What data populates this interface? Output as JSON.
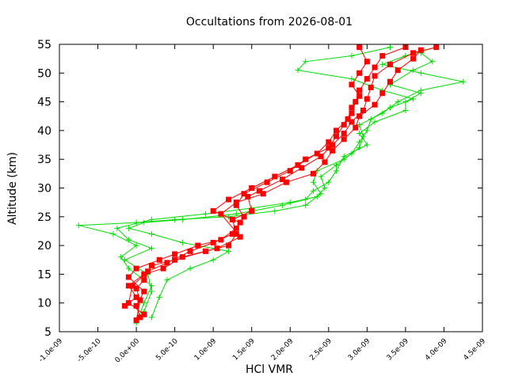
{
  "chart_data": {
    "type": "scatter",
    "title": "Occultations from 2026-08-01",
    "xlabel": "HCl VMR",
    "ylabel": "Altitude (km)",
    "xlim": [
      -1e-09,
      4.5e-09
    ],
    "ylim": [
      5,
      55
    ],
    "x_ticks": [
      -1e-09,
      -5e-10,
      0.0,
      5e-10,
      1e-09,
      1.5e-09,
      2e-09,
      2.5e-09,
      3e-09,
      3.5e-09,
      4e-09,
      4.5e-09
    ],
    "x_tick_labels": [
      "-1.0e-09",
      "-5.0e-10",
      "0.0e+00",
      "5.0e-10",
      "1.0e-09",
      "1.5e-09",
      "2.0e-09",
      "2.5e-09",
      "3.0e-09",
      "3.5e-09",
      "4.0e-09",
      "4.5e-09"
    ],
    "y_ticks": [
      5,
      10,
      15,
      20,
      25,
      30,
      35,
      40,
      45,
      50,
      55
    ],
    "y_tick_labels": [
      "5",
      "10",
      "15",
      "20",
      "25",
      "30",
      "35",
      "40",
      "45",
      "50",
      "55"
    ],
    "grid": false,
    "legend": "none",
    "series": [
      {
        "color": "#ff0000",
        "marker": "square",
        "line": true,
        "profiles": [
          [
            [
              5e-11,
              7.5
            ],
            [
              0.0,
              9.5
            ],
            [
              1e-10,
              12
            ],
            [
              -1e-10,
              14.5
            ],
            [
              0.0,
              16
            ],
            [
              3e-10,
              17.5
            ],
            [
              5e-10,
              18.5
            ],
            [
              8e-10,
              20
            ],
            [
              1.1e-09,
              21
            ],
            [
              1.3e-09,
              23
            ],
            [
              1.4e-09,
              25
            ],
            [
              1.3e-09,
              27
            ],
            [
              1.4e-09,
              29
            ],
            [
              1.7e-09,
              31
            ],
            [
              2e-09,
              33
            ],
            [
              2.2e-09,
              35
            ],
            [
              2.5e-09,
              37
            ],
            [
              2.6e-09,
              39
            ],
            [
              2.7e-09,
              41
            ],
            [
              2.8e-09,
              43
            ],
            [
              2.85e-09,
              45
            ],
            [
              2.9e-09,
              47
            ],
            [
              3e-09,
              49
            ],
            [
              3.1e-09,
              51
            ],
            [
              3.2e-09,
              53
            ],
            [
              3.5e-09,
              54.5
            ]
          ],
          [
            [
              1e-10,
              8
            ],
            [
              -1e-10,
              10
            ],
            [
              -5e-11,
              13
            ],
            [
              1.5e-10,
              15.5
            ],
            [
              4e-10,
              17
            ],
            [
              7e-10,
              19
            ],
            [
              1e-09,
              20.5
            ],
            [
              1.25e-09,
              22
            ],
            [
              1.35e-09,
              24
            ],
            [
              1e-09,
              26
            ],
            [
              1.2e-09,
              28
            ],
            [
              1.5e-09,
              30
            ],
            [
              1.8e-09,
              32
            ],
            [
              2.1e-09,
              34
            ],
            [
              2.35e-09,
              36
            ],
            [
              2.5e-09,
              38
            ],
            [
              2.6e-09,
              40
            ],
            [
              2.75e-09,
              42
            ],
            [
              2.8e-09,
              44
            ],
            [
              2.9e-09,
              46
            ],
            [
              2.8e-09,
              48
            ],
            [
              2.9e-09,
              50
            ],
            [
              3e-09,
              52
            ],
            [
              2.9e-09,
              54.5
            ]
          ],
          [
            [
              0.0,
              7
            ],
            [
              5e-11,
              10.5
            ],
            [
              0.0,
              12.5
            ],
            [
              1e-10,
              14
            ],
            [
              2e-10,
              16.5
            ],
            [
              5e-10,
              17.5
            ],
            [
              9e-10,
              19
            ],
            [
              1.2e-09,
              20
            ],
            [
              1.3e-09,
              22
            ],
            [
              1.25e-09,
              24.5
            ],
            [
              1.5e-09,
              26
            ],
            [
              1.45e-09,
              28.5
            ],
            [
              1.6e-09,
              29.5
            ],
            [
              1.9e-09,
              31.5
            ],
            [
              2.15e-09,
              33.5
            ],
            [
              2.4e-09,
              35.5
            ],
            [
              2.55e-09,
              37.5
            ],
            [
              2.7e-09,
              39.5
            ],
            [
              2.8e-09,
              41.5
            ],
            [
              2.95e-09,
              43.5
            ],
            [
              3e-09,
              45.5
            ],
            [
              3.05e-09,
              47.5
            ],
            [
              3.1e-09,
              49.5
            ],
            [
              3.3e-09,
              51.5
            ],
            [
              3.6e-09,
              53.5
            ],
            [
              3.9e-09,
              54.5
            ]
          ],
          [
            [
              -1.5e-10,
              9.5
            ],
            [
              0.0,
              11
            ],
            [
              -1e-10,
              13
            ],
            [
              1e-10,
              15
            ],
            [
              3.5e-10,
              16
            ],
            [
              6e-10,
              18
            ],
            [
              1.05e-09,
              19.5
            ],
            [
              1.35e-09,
              21.5
            ],
            [
              1.1e-09,
              25.5
            ],
            [
              1.3e-09,
              27.5
            ],
            [
              1.65e-09,
              29
            ],
            [
              1.95e-09,
              31
            ],
            [
              2.3e-09,
              32.5
            ],
            [
              2.45e-09,
              34.5
            ],
            [
              2.55e-09,
              36.5
            ],
            [
              2.7e-09,
              38.5
            ],
            [
              2.85e-09,
              40.5
            ],
            [
              2.9e-09,
              42.5
            ],
            [
              3.1e-09,
              44.5
            ],
            [
              3.2e-09,
              46.5
            ],
            [
              3.3e-09,
              48.5
            ],
            [
              3.4e-09,
              50.5
            ],
            [
              3.6e-09,
              52.5
            ],
            [
              3.7e-09,
              54
            ]
          ]
        ]
      },
      {
        "color": "#00dd00",
        "marker": "plus",
        "line": true,
        "profiles": [
          [
            [
              0.0,
              6.5
            ],
            [
              1e-10,
              10
            ],
            [
              2e-10,
              13
            ],
            [
              -1e-10,
              16
            ],
            [
              -2e-10,
              18
            ],
            [
              0.0,
              20
            ],
            [
              -3e-10,
              22
            ],
            [
              -7.5e-10,
              23.5
            ],
            [
              0.0,
              24
            ],
            [
              5e-10,
              24.5
            ],
            [
              1.2e-09,
              25
            ],
            [
              1.8e-09,
              26
            ],
            [
              2.2e-09,
              27
            ],
            [
              2.4e-09,
              29
            ],
            [
              2.3e-09,
              31
            ],
            [
              2.35e-09,
              33
            ],
            [
              2.7e-09,
              35
            ],
            [
              2.9e-09,
              37
            ],
            [
              2.95e-09,
              39
            ],
            [
              2.9e-09,
              41
            ],
            [
              3.2e-09,
              43
            ],
            [
              3.4e-09,
              45
            ],
            [
              3.7e-09,
              47
            ],
            [
              4.25e-09,
              48.5
            ],
            [
              3.7e-09,
              50
            ],
            [
              3.2e-09,
              51.5
            ],
            [
              3.5e-09,
              53
            ],
            [
              3.9e-09,
              54.5
            ]
          ],
          [
            [
              1e-10,
              8.5
            ],
            [
              2e-10,
              12
            ],
            [
              1.5e-10,
              15
            ],
            [
              -1.5e-10,
              17.5
            ],
            [
              2e-10,
              19.5
            ],
            [
              -1e-10,
              21
            ],
            [
              -2.5e-10,
              23
            ],
            [
              2e-10,
              24.5
            ],
            [
              9e-10,
              25.5
            ],
            [
              1.5e-09,
              26.5
            ],
            [
              2e-09,
              27.5
            ],
            [
              2.35e-09,
              28.5
            ],
            [
              2.45e-09,
              30
            ],
            [
              2.4e-09,
              32
            ],
            [
              2.6e-09,
              34
            ],
            [
              2.8e-09,
              36
            ],
            [
              2.9e-09,
              38
            ],
            [
              3e-09,
              40
            ],
            [
              3.05e-09,
              42
            ],
            [
              3.3e-09,
              44
            ],
            [
              3.6e-09,
              45.5
            ],
            [
              3.2e-09,
              47
            ],
            [
              2.8e-09,
              49
            ],
            [
              2.1e-09,
              50.5
            ],
            [
              2.2e-09,
              52
            ],
            [
              2.8e-09,
              53
            ],
            [
              3.3e-09,
              54.5
            ]
          ],
          [
            [
              2e-10,
              7.5
            ],
            [
              3e-10,
              11
            ],
            [
              4e-10,
              14
            ],
            [
              7e-10,
              16
            ],
            [
              1e-09,
              17.5
            ],
            [
              1.2e-09,
              19
            ],
            [
              6e-10,
              20.5
            ],
            [
              2e-10,
              22
            ],
            [
              -1e-10,
              23
            ],
            [
              1e-10,
              24
            ],
            [
              6e-10,
              24.5
            ],
            [
              1.3e-09,
              25.5
            ],
            [
              1.9e-09,
              27
            ],
            [
              2.2e-09,
              28
            ],
            [
              2.3e-09,
              29.5
            ],
            [
              2.5e-09,
              31
            ],
            [
              2.6e-09,
              33
            ],
            [
              2.7e-09,
              35.5
            ],
            [
              3e-09,
              37.5
            ],
            [
              2.9e-09,
              39.5
            ],
            [
              3.1e-09,
              41.5
            ],
            [
              3.5e-09,
              43.5
            ],
            [
              3.5e-09,
              45
            ],
            [
              3.7e-09,
              46.5
            ],
            [
              3.3e-09,
              48
            ],
            [
              3.6e-09,
              50.5
            ],
            [
              3.85e-09,
              52
            ],
            [
              3.7e-09,
              53.5
            ]
          ]
        ]
      }
    ]
  }
}
